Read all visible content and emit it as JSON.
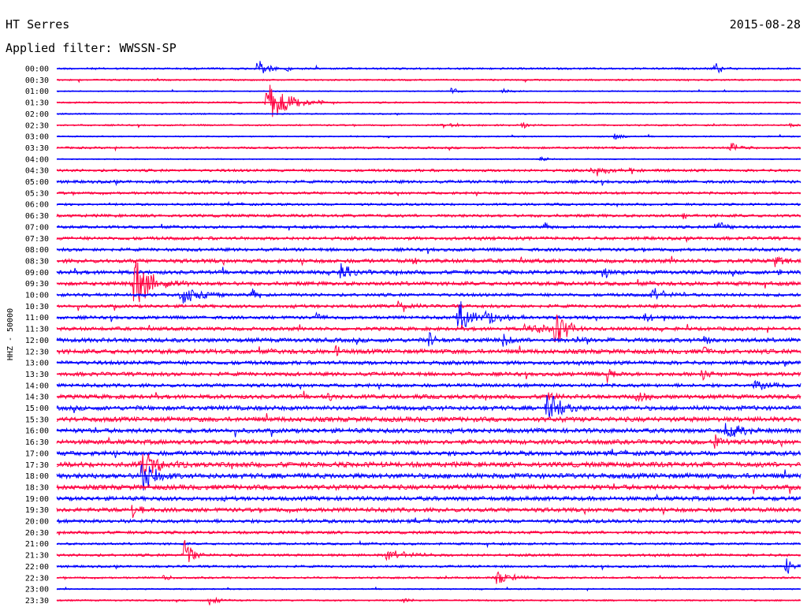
{
  "header": {
    "station": "HT Serres",
    "date": "2015-08-28",
    "filter": "Applied filter: WWSSN-SP"
  },
  "chart_data": {
    "type": "line",
    "title": "HT Serres",
    "subtitle": "Applied filter: WWSSN-SP",
    "ylabel": "HHZ - 50000",
    "rows": [
      "00:00",
      "00:30",
      "01:00",
      "01:30",
      "02:00",
      "02:30",
      "03:00",
      "03:30",
      "04:00",
      "04:30",
      "05:00",
      "05:30",
      "06:00",
      "06:30",
      "07:00",
      "07:30",
      "08:00",
      "08:30",
      "09:00",
      "09:30",
      "10:00",
      "10:30",
      "11:00",
      "11:30",
      "12:00",
      "12:30",
      "13:00",
      "13:30",
      "14:00",
      "14:30",
      "15:00",
      "15:30",
      "16:00",
      "16:30",
      "17:00",
      "17:30",
      "18:00",
      "18:30",
      "19:00",
      "19:30",
      "20:00",
      "20:30",
      "21:00",
      "21:30",
      "22:00",
      "22:30",
      "23:00",
      "23:30"
    ],
    "colors": [
      "#0000ff",
      "#ff0040"
    ],
    "noise_levels": [
      1.2,
      1.0,
      0.7,
      1.0,
      0.8,
      1.0,
      0.8,
      1.3,
      0.7,
      1.6,
      1.8,
      1.6,
      1.4,
      1.8,
      1.7,
      2.0,
      2.0,
      2.4,
      2.4,
      2.4,
      2.0,
      2.0,
      2.0,
      2.2,
      2.6,
      2.8,
      2.4,
      2.4,
      2.2,
      2.6,
      2.8,
      3.0,
      2.8,
      2.8,
      2.8,
      3.2,
      3.2,
      3.0,
      2.6,
      2.6,
      2.2,
      1.8,
      1.4,
      1.6,
      1.4,
      1.2,
      0.8,
      1.0
    ],
    "events": [
      {
        "row": "00:00",
        "x": 0.27,
        "amp": 11,
        "width": 0.015
      },
      {
        "row": "00:00",
        "x": 0.31,
        "amp": 4,
        "width": 0.01
      },
      {
        "row": "00:00",
        "x": 0.885,
        "amp": 7,
        "width": 0.012
      },
      {
        "row": "01:00",
        "x": 0.53,
        "amp": 5,
        "width": 0.01
      },
      {
        "row": "01:00",
        "x": 0.6,
        "amp": 3,
        "width": 0.015
      },
      {
        "row": "01:30",
        "x": 0.285,
        "amp": 24,
        "width": 0.03
      },
      {
        "row": "02:30",
        "x": 0.52,
        "amp": 3,
        "width": 0.02
      },
      {
        "row": "02:30",
        "x": 0.625,
        "amp": 5,
        "width": 0.008
      },
      {
        "row": "02:30",
        "x": 0.985,
        "amp": 4,
        "width": 0.008
      },
      {
        "row": "03:00",
        "x": 0.445,
        "amp": 4,
        "width": 0.006
      },
      {
        "row": "03:00",
        "x": 0.75,
        "amp": 4,
        "width": 0.01
      },
      {
        "row": "03:30",
        "x": 0.905,
        "amp": 7,
        "width": 0.015
      },
      {
        "row": "04:00",
        "x": 0.65,
        "amp": 4,
        "width": 0.012
      },
      {
        "row": "04:30",
        "x": 0.72,
        "amp": 5,
        "width": 0.03
      },
      {
        "row": "04:30",
        "x": 0.77,
        "amp": 5,
        "width": 0.01
      },
      {
        "row": "06:30",
        "x": 0.84,
        "amp": 4,
        "width": 0.01
      },
      {
        "row": "07:00",
        "x": 0.655,
        "amp": 7,
        "width": 0.005
      },
      {
        "row": "07:00",
        "x": 0.885,
        "amp": 9,
        "width": 0.012
      },
      {
        "row": "08:30",
        "x": 0.48,
        "amp": 7,
        "width": 0.012
      },
      {
        "row": "08:30",
        "x": 0.965,
        "amp": 9,
        "width": 0.012
      },
      {
        "row": "09:00",
        "x": 0.38,
        "amp": 11,
        "width": 0.015
      },
      {
        "row": "09:00",
        "x": 0.735,
        "amp": 8,
        "width": 0.015
      },
      {
        "row": "09:00",
        "x": 0.97,
        "amp": 6,
        "width": 0.01
      },
      {
        "row": "09:30",
        "x": 0.105,
        "amp": 30,
        "width": 0.025
      },
      {
        "row": "10:00",
        "x": 0.168,
        "amp": 14,
        "width": 0.02
      },
      {
        "row": "10:00",
        "x": 0.262,
        "amp": 8,
        "width": 0.01
      },
      {
        "row": "10:00",
        "x": 0.8,
        "amp": 11,
        "width": 0.015
      },
      {
        "row": "10:30",
        "x": 0.46,
        "amp": 10,
        "width": 0.012
      },
      {
        "row": "11:00",
        "x": 0.35,
        "amp": 9,
        "width": 0.01
      },
      {
        "row": "11:00",
        "x": 0.54,
        "amp": 28,
        "width": 0.012
      },
      {
        "row": "11:00",
        "x": 0.575,
        "amp": 10,
        "width": 0.025
      },
      {
        "row": "11:00",
        "x": 0.79,
        "amp": 7,
        "width": 0.012
      },
      {
        "row": "11:30",
        "x": 0.63,
        "amp": 8,
        "width": 0.03
      },
      {
        "row": "11:30",
        "x": 0.67,
        "amp": 26,
        "width": 0.015
      },
      {
        "row": "12:00",
        "x": 0.5,
        "amp": 12,
        "width": 0.006
      },
      {
        "row": "12:00",
        "x": 0.6,
        "amp": 12,
        "width": 0.008
      },
      {
        "row": "12:00",
        "x": 0.7,
        "amp": 10,
        "width": 0.015
      },
      {
        "row": "12:00",
        "x": 0.87,
        "amp": 10,
        "width": 0.008
      },
      {
        "row": "12:30",
        "x": 0.375,
        "amp": 9,
        "width": 0.008
      },
      {
        "row": "12:30",
        "x": 0.87,
        "amp": 8,
        "width": 0.008
      },
      {
        "row": "13:30",
        "x": 0.74,
        "amp": 11,
        "width": 0.008
      },
      {
        "row": "13:30",
        "x": 0.865,
        "amp": 10,
        "width": 0.01
      },
      {
        "row": "14:00",
        "x": 0.94,
        "amp": 8,
        "width": 0.025
      },
      {
        "row": "14:30",
        "x": 0.365,
        "amp": 7,
        "width": 0.008
      },
      {
        "row": "14:30",
        "x": 0.66,
        "amp": 14,
        "width": 0.008
      },
      {
        "row": "14:30",
        "x": 0.78,
        "amp": 11,
        "width": 0.01
      },
      {
        "row": "15:00",
        "x": 0.66,
        "amp": 22,
        "width": 0.02
      },
      {
        "row": "16:00",
        "x": 0.9,
        "amp": 10,
        "width": 0.025
      },
      {
        "row": "16:30",
        "x": 0.885,
        "amp": 12,
        "width": 0.01
      },
      {
        "row": "17:30",
        "x": 0.115,
        "amp": 18,
        "width": 0.02
      },
      {
        "row": "18:00",
        "x": 0.115,
        "amp": 26,
        "width": 0.015
      },
      {
        "row": "19:30",
        "x": 0.102,
        "amp": 12,
        "width": 0.01
      },
      {
        "row": "21:30",
        "x": 0.172,
        "amp": 20,
        "width": 0.012
      },
      {
        "row": "21:30",
        "x": 0.445,
        "amp": 8,
        "width": 0.025
      },
      {
        "row": "22:00",
        "x": 0.98,
        "amp": 14,
        "width": 0.008
      },
      {
        "row": "22:30",
        "x": 0.59,
        "amp": 9,
        "width": 0.025
      },
      {
        "row": "22:30",
        "x": 0.142,
        "amp": 5,
        "width": 0.01
      },
      {
        "row": "23:30",
        "x": 0.205,
        "amp": 8,
        "width": 0.01
      },
      {
        "row": "23:30",
        "x": 0.465,
        "amp": 5,
        "width": 0.008
      }
    ]
  }
}
